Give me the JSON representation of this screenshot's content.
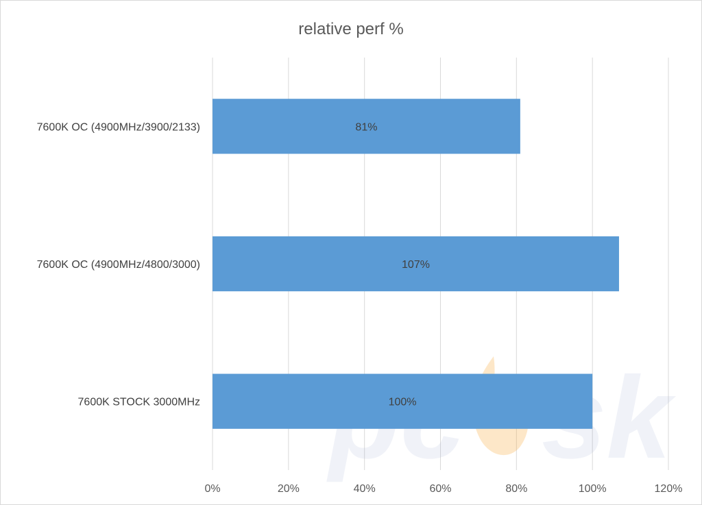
{
  "chart_data": {
    "type": "bar",
    "orientation": "horizontal",
    "title": "relative perf %",
    "categories": [
      "7600K OC (4900MHz/3900/2133)",
      "7600K OC (4900MHz/4800/3000)",
      "7600K STOCK 3000MHz"
    ],
    "values": [
      81,
      107,
      100
    ],
    "data_labels": [
      "81%",
      "107%",
      "100%"
    ],
    "xlim": [
      0,
      120
    ],
    "x_ticks": [
      0,
      20,
      40,
      60,
      80,
      100,
      120
    ],
    "x_tick_labels": [
      "0%",
      "20%",
      "40%",
      "60%",
      "80%",
      "100%",
      "120%"
    ],
    "grid": true,
    "colors": {
      "bar": "#5b9bd5",
      "grid": "#d9d9d9"
    }
  },
  "watermark": {
    "text": "pcsk"
  }
}
